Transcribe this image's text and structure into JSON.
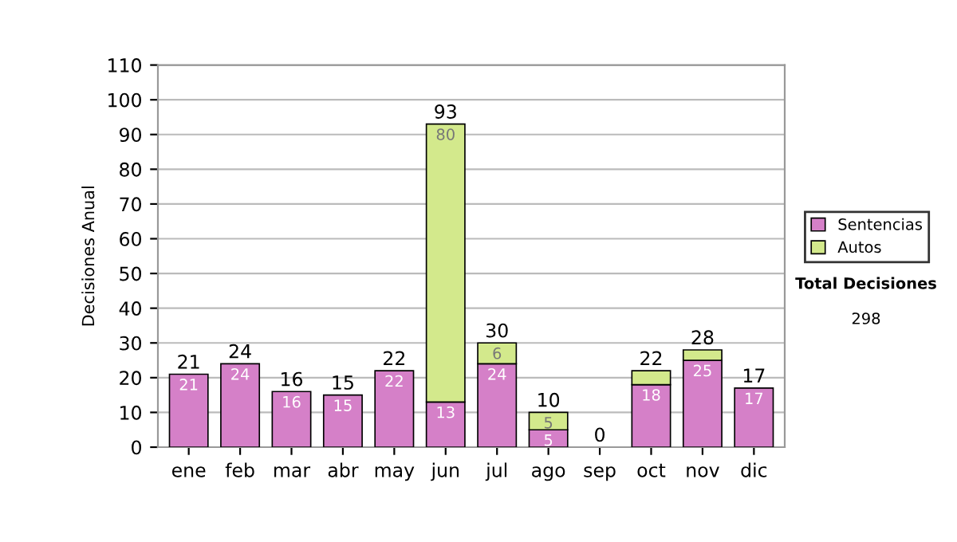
{
  "chart_data": {
    "type": "bar",
    "stacked": true,
    "ylabel": "Decisiones Anual",
    "categories": [
      "ene",
      "feb",
      "mar",
      "abr",
      "may",
      "jun",
      "jul",
      "ago",
      "sep",
      "oct",
      "nov",
      "dic"
    ],
    "series": [
      {
        "name": "Sentencias",
        "color": "#d580c8",
        "values": [
          21,
          24,
          16,
          15,
          22,
          13,
          24,
          5,
          0,
          18,
          25,
          17
        ],
        "value_labels": [
          "21",
          "24",
          "16",
          "15",
          "22",
          "13",
          "24",
          "5",
          null,
          "18",
          "25",
          "17"
        ]
      },
      {
        "name": "Autos",
        "color": "#d3e98c",
        "values": [
          0,
          0,
          0,
          0,
          0,
          80,
          6,
          5,
          0,
          4,
          3,
          0
        ],
        "value_labels": [
          null,
          null,
          null,
          null,
          null,
          "80",
          "6",
          "5",
          null,
          null,
          null,
          null
        ]
      }
    ],
    "totals": [
      "21",
      "24",
      "16",
      "15",
      "22",
      "93",
      "30",
      "10",
      "0",
      "22",
      "28",
      "17"
    ],
    "ylim": [
      0,
      110
    ],
    "yticks": [
      0,
      10,
      20,
      30,
      40,
      50,
      60,
      70,
      80,
      90,
      100,
      110
    ],
    "grid": "y",
    "legend": "right",
    "annotations": [
      "Total Decisiones",
      "298"
    ]
  }
}
